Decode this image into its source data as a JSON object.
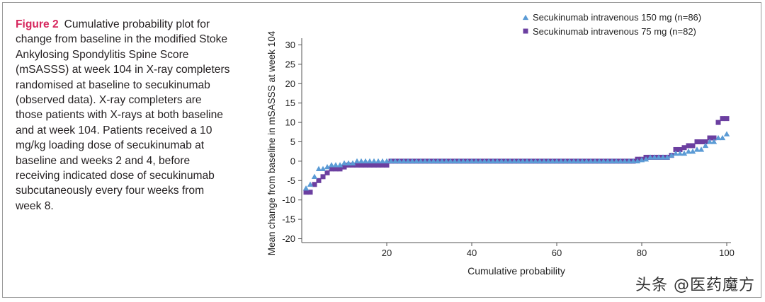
{
  "figure": {
    "label": "Figure 2",
    "caption": "Cumulative probability plot for change from baseline in the modified Stoke Ankylosing Spondylitis Spine Score (mSASSS) at week 104 in X-ray completers randomised at baseline to secukinumab (observed data). X-ray completers are those patients with X-rays at both baseline and at week 104. Patients received a 10 mg/kg loading dose of secukinumab at baseline and weeks 2 and 4, before receiving indicated dose of secukinumab subcutaneously every four weeks from week 8."
  },
  "watermark": "头条 @医药魔方",
  "colors": {
    "label": "#d6265d",
    "triangle": "#5b9bd5",
    "square": "#6b3fa0"
  },
  "chart_data": {
    "type": "scatter",
    "title": "",
    "xlabel": "Cumulative probability",
    "ylabel": "Mean change from baseline in mSASSS at week 104",
    "xlim": [
      0,
      101
    ],
    "ylim": [
      -21,
      31
    ],
    "xticks": [
      20,
      40,
      60,
      80,
      100
    ],
    "yticks": [
      30,
      25,
      20,
      15,
      10,
      5,
      0,
      -5,
      -10,
      -15,
      -20
    ],
    "legend_position": "top-right",
    "series": [
      {
        "name": "Secukinumab intravenous 150 mg (n=86)",
        "marker": "triangle",
        "color": "#5b9bd5",
        "points": [
          [
            1,
            -7
          ],
          [
            2,
            -6
          ],
          [
            3,
            -4
          ],
          [
            4,
            -2
          ],
          [
            5,
            -2
          ],
          [
            6,
            -1.5
          ],
          [
            7,
            -1
          ],
          [
            8,
            -1
          ],
          [
            9,
            -1
          ],
          [
            10,
            -0.5
          ],
          [
            11,
            -0.5
          ],
          [
            12,
            -0.5
          ],
          [
            13,
            0
          ],
          [
            14,
            0
          ],
          [
            15,
            0
          ],
          [
            16,
            0
          ],
          [
            17,
            0
          ],
          [
            18,
            0
          ],
          [
            19,
            0
          ],
          [
            20,
            0
          ],
          [
            21,
            0
          ],
          [
            78,
            0
          ],
          [
            79,
            0
          ],
          [
            80,
            0.3
          ],
          [
            81,
            0.5
          ],
          [
            82,
            1
          ],
          [
            83,
            1
          ],
          [
            84,
            1
          ],
          [
            85,
            1
          ],
          [
            86,
            1
          ],
          [
            87,
            1.5
          ],
          [
            88,
            2
          ],
          [
            89,
            2
          ],
          [
            90,
            2
          ],
          [
            91,
            2.5
          ],
          [
            92,
            2.5
          ],
          [
            93,
            3
          ],
          [
            94,
            3
          ],
          [
            95,
            4
          ],
          [
            96,
            5
          ],
          [
            97,
            5
          ],
          [
            98,
            6
          ],
          [
            99,
            6
          ],
          [
            100,
            7
          ]
        ]
      },
      {
        "name": "Secukinumab intravenous 75 mg (n=82)",
        "marker": "square",
        "color": "#6b3fa0",
        "points": [
          [
            1,
            -8
          ],
          [
            2,
            -8
          ],
          [
            3,
            -6
          ],
          [
            4,
            -5
          ],
          [
            5,
            -4
          ],
          [
            6,
            -3
          ],
          [
            7,
            -2
          ],
          [
            8,
            -2
          ],
          [
            9,
            -2
          ],
          [
            10,
            -1.5
          ],
          [
            11,
            -1
          ],
          [
            12,
            -1
          ],
          [
            13,
            -1
          ],
          [
            14,
            -1
          ],
          [
            15,
            -1
          ],
          [
            16,
            -1
          ],
          [
            17,
            -1
          ],
          [
            18,
            -1
          ],
          [
            19,
            -1
          ],
          [
            20,
            -1
          ],
          [
            21,
            0
          ],
          [
            78,
            0
          ],
          [
            79,
            0.5
          ],
          [
            80,
            0.5
          ],
          [
            81,
            1
          ],
          [
            82,
            1
          ],
          [
            83,
            1
          ],
          [
            84,
            1
          ],
          [
            85,
            1
          ],
          [
            86,
            1
          ],
          [
            87,
            1.5
          ],
          [
            88,
            3
          ],
          [
            89,
            3
          ],
          [
            90,
            3.5
          ],
          [
            91,
            4
          ],
          [
            92,
            4
          ],
          [
            93,
            5
          ],
          [
            94,
            5
          ],
          [
            95,
            5
          ],
          [
            96,
            6
          ],
          [
            97,
            6
          ],
          [
            98,
            10
          ],
          [
            99,
            11
          ],
          [
            100,
            11
          ]
        ]
      }
    ]
  }
}
